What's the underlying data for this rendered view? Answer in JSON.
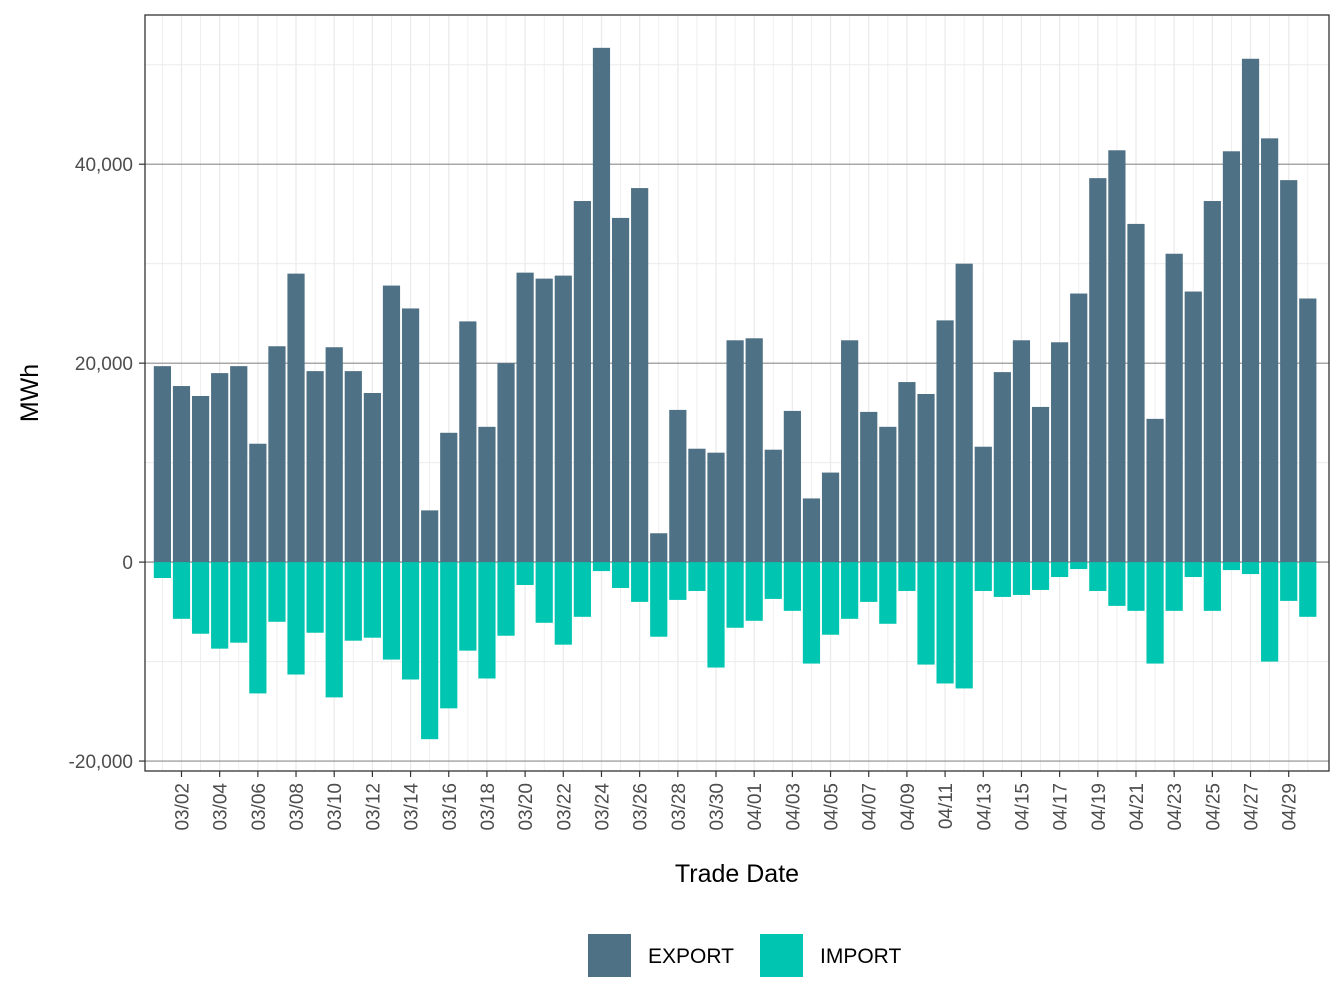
{
  "chart_data": {
    "type": "bar",
    "stacked": true,
    "xlabel": "Trade Date",
    "ylabel": "MWh",
    "ylim": [
      -21000,
      55000
    ],
    "y_ticks": [
      -20000,
      0,
      20000,
      40000
    ],
    "y_tick_labels": [
      "-20,000",
      "0",
      "20,000",
      "40,000"
    ],
    "grid": true,
    "legend_position": "bottom",
    "categories": [
      "03/01",
      "03/02",
      "03/03",
      "03/04",
      "03/05",
      "03/06",
      "03/07",
      "03/08",
      "03/09",
      "03/10",
      "03/11",
      "03/12",
      "03/13",
      "03/14",
      "03/15",
      "03/16",
      "03/17",
      "03/18",
      "03/19",
      "03/20",
      "03/21",
      "03/22",
      "03/23",
      "03/24",
      "03/25",
      "03/26",
      "03/27",
      "03/28",
      "03/29",
      "03/30",
      "03/31",
      "04/01",
      "04/02",
      "04/03",
      "04/04",
      "04/05",
      "04/06",
      "04/07",
      "04/08",
      "04/09",
      "04/10",
      "04/11",
      "04/12",
      "04/13",
      "04/14",
      "04/15",
      "04/16",
      "04/17",
      "04/18",
      "04/19",
      "04/20",
      "04/21",
      "04/22",
      "04/23",
      "04/24",
      "04/25",
      "04/26",
      "04/27",
      "04/28",
      "04/29",
      "04/30"
    ],
    "x_tick_labels": [
      "03/02",
      "03/04",
      "03/06",
      "03/08",
      "03/10",
      "03/12",
      "03/14",
      "03/16",
      "03/18",
      "03/20",
      "03/22",
      "03/24",
      "03/26",
      "03/28",
      "03/30",
      "04/01",
      "04/03",
      "04/05",
      "04/07",
      "04/09",
      "04/11",
      "04/13",
      "04/15",
      "04/17",
      "04/19",
      "04/21",
      "04/23",
      "04/25",
      "04/27",
      "04/29"
    ],
    "series": [
      {
        "name": "EXPORT",
        "color": "#4f7185",
        "values": [
          19700,
          17700,
          16700,
          19000,
          19700,
          11900,
          21700,
          29000,
          19200,
          21600,
          19200,
          17000,
          27800,
          25500,
          5200,
          13000,
          24200,
          13600,
          20000,
          29100,
          28500,
          28800,
          36300,
          51700,
          34600,
          37600,
          2900,
          15300,
          11400,
          11000,
          22300,
          22500,
          11300,
          15200,
          6400,
          9000,
          22300,
          15100,
          13600,
          18100,
          16900,
          24300,
          30000,
          11600,
          19100,
          22300,
          15600,
          22100,
          27000,
          38600,
          41400,
          34000,
          14400,
          31000,
          27200,
          36300,
          41300,
          50600,
          42600,
          38400,
          26500
        ]
      },
      {
        "name": "IMPORT",
        "color": "#00c5b0",
        "values": [
          -1600,
          -5700,
          -7200,
          -8700,
          -8100,
          -13200,
          -6000,
          -11300,
          -7100,
          -13600,
          -7900,
          -7600,
          -9800,
          -11800,
          -17800,
          -14700,
          -8900,
          -11700,
          -7400,
          -2300,
          -6100,
          -8300,
          -5500,
          -900,
          -2600,
          -4000,
          -7500,
          -3800,
          -2900,
          -10600,
          -6600,
          -5900,
          -3700,
          -4900,
          -10200,
          -7300,
          -5700,
          -4000,
          -6200,
          -2900,
          -10300,
          -12200,
          -12700,
          -2900,
          -3500,
          -3300,
          -2800,
          -1500,
          -700,
          -2900,
          -4400,
          -4900,
          -10200,
          -4900,
          -1500,
          -4900,
          -800,
          -1200,
          -10000,
          -3900,
          -5500
        ]
      }
    ]
  }
}
